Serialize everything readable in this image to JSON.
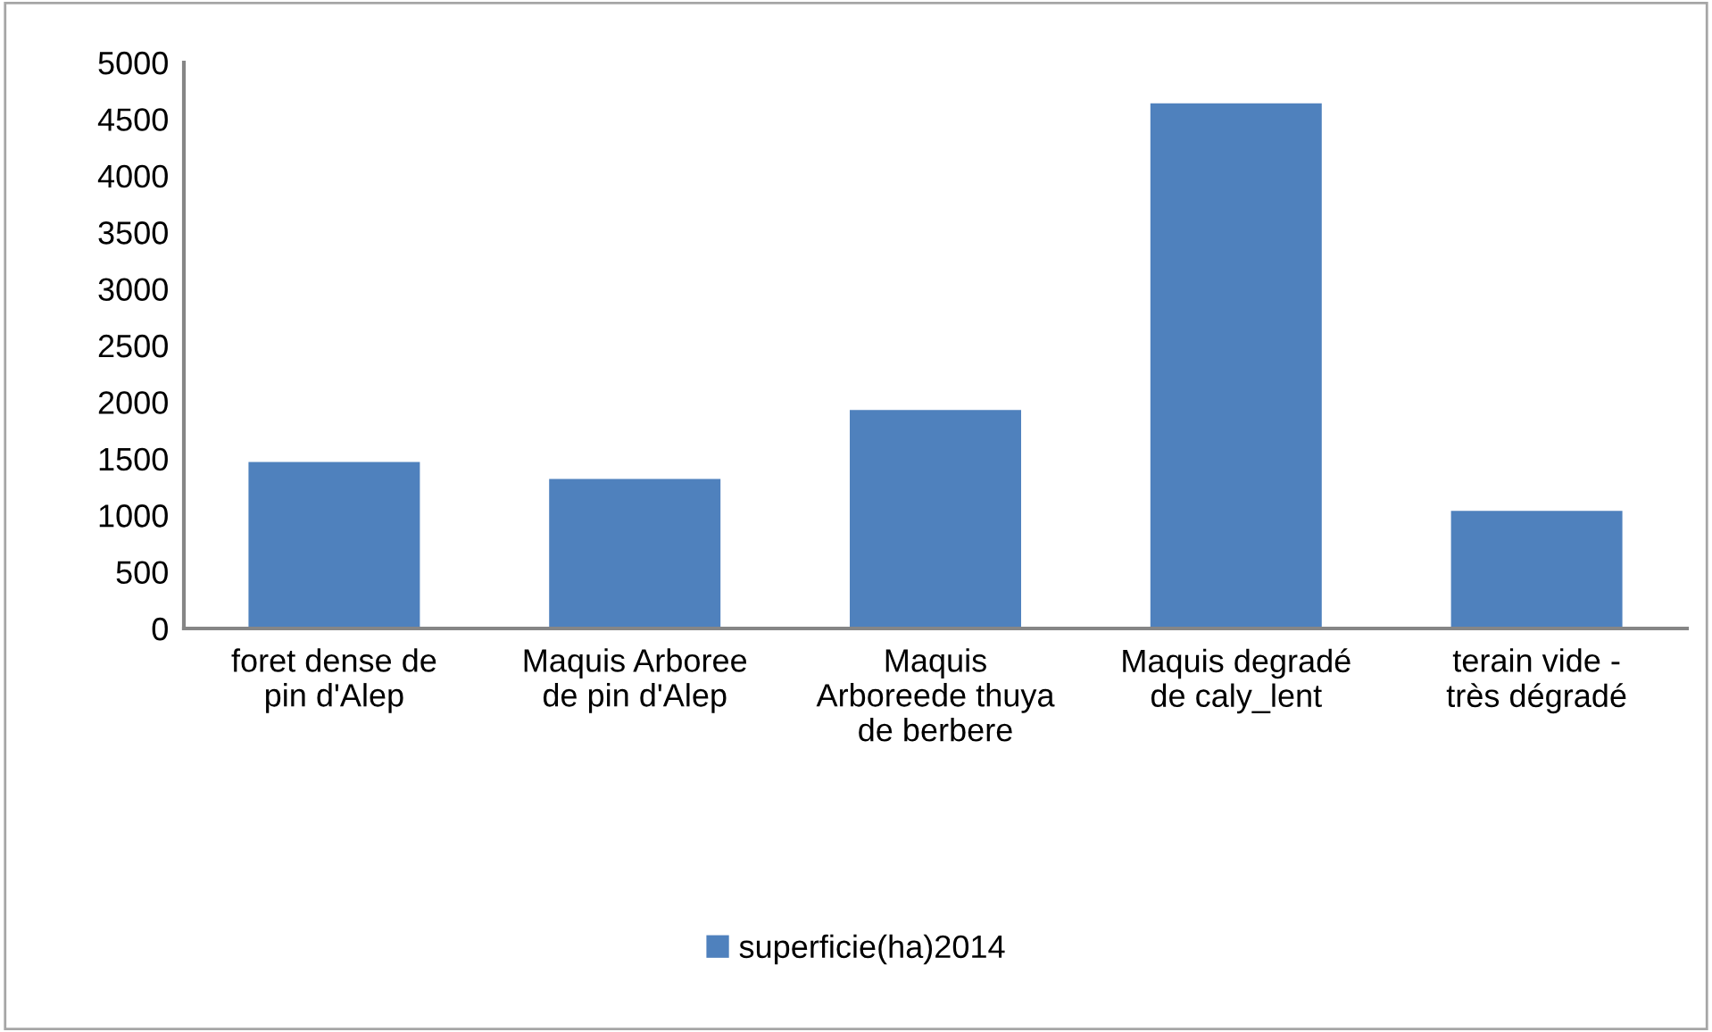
{
  "chart_data": {
    "type": "bar",
    "categories": [
      "foret dense de pin d'Alep",
      "Maquis Arboree de pin d'Alep",
      "Maquis Arboreede thuya de berbere",
      "Maquis degradé de caly_lent",
      "terain vide - très dégradé"
    ],
    "series": [
      {
        "name": "superficie(ha)2014",
        "color": "#4f81bd",
        "values": [
          1470,
          1320,
          1930,
          4640,
          1040
        ]
      }
    ],
    "ylim": [
      0,
      5000
    ],
    "yticks": [
      0,
      500,
      1000,
      1500,
      2000,
      2500,
      3000,
      3500,
      4000,
      4500,
      5000
    ],
    "grid": false,
    "legend": "bottom"
  }
}
